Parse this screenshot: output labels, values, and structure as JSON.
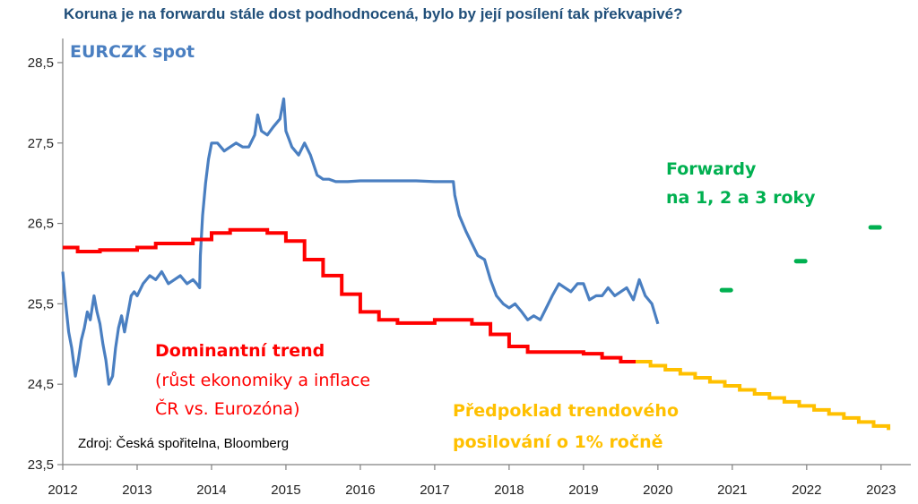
{
  "title": "Koruna je na forwardu stále dost podhodnocená, bylo by její posílení tak překvapivé?",
  "chart_data": {
    "type": "line",
    "title": "Koruna je na forwardu stále dost podhodnocená, bylo by její posílení tak překvapivé?",
    "xlabel": "",
    "ylabel": "",
    "xlim": [
      2012,
      2023.4
    ],
    "ylim": [
      23.5,
      28.8
    ],
    "x_ticks": [
      "2012",
      "2013",
      "2014",
      "2015",
      "2016",
      "2017",
      "2018",
      "2019",
      "2020",
      "2021",
      "2022",
      "2023"
    ],
    "y_ticks": [
      "23,5",
      "24,5",
      "25,5",
      "26,5",
      "27,5",
      "28,5"
    ],
    "grid": false,
    "colors": {
      "spot": "#4a7fc1",
      "trend": "#ff0000",
      "assumed": "#ffc000",
      "forwards": "#00b050",
      "axis": "#808080"
    },
    "series": [
      {
        "name": "EURCZK spot",
        "x": [
          2012.0,
          2012.04,
          2012.08,
          2012.12,
          2012.17,
          2012.21,
          2012.25,
          2012.29,
          2012.33,
          2012.37,
          2012.42,
          2012.46,
          2012.5,
          2012.54,
          2012.58,
          2012.62,
          2012.67,
          2012.71,
          2012.75,
          2012.79,
          2012.83,
          2012.87,
          2012.92,
          2012.96,
          2013.0,
          2013.08,
          2013.17,
          2013.25,
          2013.33,
          2013.42,
          2013.5,
          2013.58,
          2013.67,
          2013.75,
          2013.8,
          2013.84,
          2013.85,
          2013.88,
          2013.92,
          2013.96,
          2014.0,
          2014.08,
          2014.17,
          2014.25,
          2014.33,
          2014.42,
          2014.5,
          2014.58,
          2014.62,
          2014.67,
          2014.75,
          2014.83,
          2014.92,
          2014.97,
          2015.0,
          2015.04,
          2015.08,
          2015.17,
          2015.25,
          2015.33,
          2015.42,
          2015.5,
          2015.58,
          2015.67,
          2015.75,
          2015.83,
          2016.0,
          2016.25,
          2016.5,
          2016.75,
          2017.0,
          2017.25,
          2017.27,
          2017.33,
          2017.42,
          2017.5,
          2017.58,
          2017.67,
          2017.75,
          2017.83,
          2017.92,
          2018.0,
          2018.08,
          2018.17,
          2018.25,
          2018.33,
          2018.42,
          2018.5,
          2018.58,
          2018.67,
          2018.75,
          2018.83,
          2018.92,
          2019.0,
          2019.08,
          2019.17,
          2019.25,
          2019.33,
          2019.42,
          2019.5,
          2019.58,
          2019.67,
          2019.75,
          2019.83,
          2019.92,
          2020.0
        ],
        "values": [
          25.9,
          25.5,
          25.15,
          24.95,
          24.6,
          24.8,
          25.05,
          25.2,
          25.4,
          25.3,
          25.6,
          25.4,
          25.25,
          25.0,
          24.8,
          24.5,
          24.6,
          24.95,
          25.2,
          25.35,
          25.15,
          25.35,
          25.6,
          25.65,
          25.6,
          25.75,
          25.85,
          25.8,
          25.9,
          25.75,
          25.8,
          25.85,
          25.75,
          25.8,
          25.75,
          25.7,
          26.1,
          26.6,
          27.0,
          27.3,
          27.5,
          27.5,
          27.4,
          27.45,
          27.5,
          27.45,
          27.45,
          27.6,
          27.85,
          27.65,
          27.6,
          27.7,
          27.8,
          28.05,
          27.65,
          27.55,
          27.45,
          27.35,
          27.5,
          27.35,
          27.1,
          27.05,
          27.05,
          27.02,
          27.02,
          27.02,
          27.03,
          27.03,
          27.03,
          27.03,
          27.02,
          27.02,
          26.85,
          26.6,
          26.4,
          26.25,
          26.1,
          26.05,
          25.8,
          25.6,
          25.5,
          25.45,
          25.5,
          25.4,
          25.3,
          25.35,
          25.3,
          25.45,
          25.6,
          25.75,
          25.7,
          25.65,
          25.75,
          25.75,
          25.55,
          25.6,
          25.6,
          25.7,
          25.6,
          25.65,
          25.7,
          25.55,
          25.8,
          25.6,
          25.5,
          25.25
        ]
      },
      {
        "name": "Dominantní trend",
        "x": [
          2012.0,
          2012.2,
          2012.5,
          2012.75,
          2013.0,
          2013.25,
          2013.5,
          2013.75,
          2014.0,
          2014.25,
          2014.5,
          2014.75,
          2015.0,
          2015.25,
          2015.5,
          2015.75,
          2016.0,
          2016.25,
          2016.5,
          2016.75,
          2017.0,
          2017.25,
          2017.5,
          2017.75,
          2018.0,
          2018.25,
          2018.5,
          2018.75,
          2019.0,
          2019.25,
          2019.5,
          2019.7
        ],
        "values": [
          26.2,
          26.15,
          26.17,
          26.17,
          26.2,
          26.25,
          26.25,
          26.3,
          26.38,
          26.42,
          26.42,
          26.38,
          26.28,
          26.05,
          25.85,
          25.62,
          25.4,
          25.3,
          25.26,
          25.26,
          25.3,
          25.3,
          25.25,
          25.12,
          24.97,
          24.9,
          24.9,
          24.9,
          24.88,
          24.83,
          24.78,
          24.78
        ]
      },
      {
        "name": "Předpoklad trendového posilování o 1% ročně",
        "x": [
          2019.7,
          2019.9,
          2020.1,
          2020.3,
          2020.5,
          2020.7,
          2020.9,
          2021.1,
          2021.3,
          2021.5,
          2021.7,
          2021.9,
          2022.1,
          2022.3,
          2022.5,
          2022.7,
          2022.9,
          2023.1
        ],
        "values": [
          24.78,
          24.73,
          24.68,
          24.63,
          24.58,
          24.53,
          24.48,
          24.43,
          24.38,
          24.33,
          24.28,
          24.23,
          24.18,
          24.13,
          24.08,
          24.03,
          23.98,
          23.93
        ]
      },
      {
        "name": "Forwardy na 1, 2 a 3 roky",
        "x": [
          2020.92,
          2021.92,
          2022.92
        ],
        "values": [
          25.67,
          26.03,
          26.45
        ]
      }
    ]
  },
  "annotations": {
    "spot_label": "EURCZK spot",
    "forwards_line1": "Forwardy",
    "forwards_line2": "na 1, 2 a 3 roky",
    "trend_title": "Dominantní trend",
    "trend_line2": "(růst ekonomiky  a inflace",
    "trend_line3": "ČR vs. Eurozóna)",
    "assumed_line1": "Předpoklad trendového",
    "assumed_line2": "posilování o 1% ročně",
    "source": "Zdroj: Česká spořitelna, Bloomberg"
  }
}
